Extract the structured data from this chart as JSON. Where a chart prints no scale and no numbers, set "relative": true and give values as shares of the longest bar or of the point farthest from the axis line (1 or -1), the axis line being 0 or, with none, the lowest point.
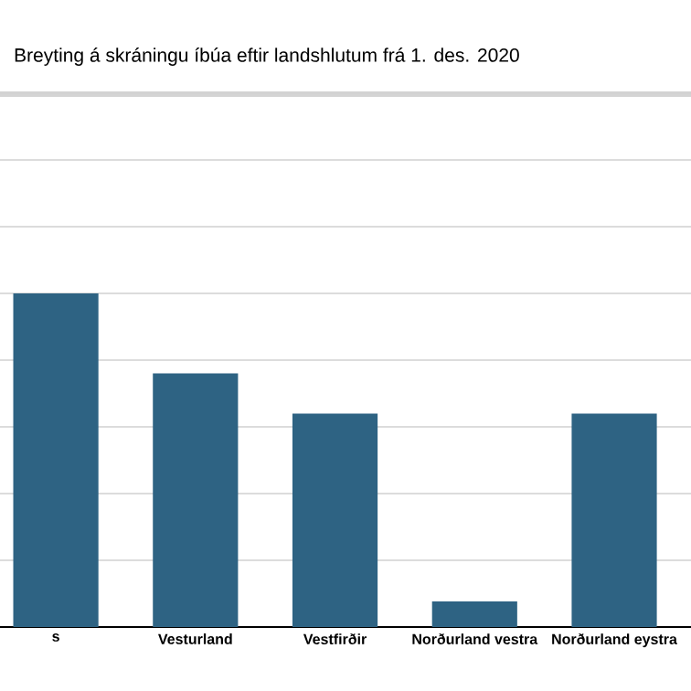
{
  "chart_data": {
    "type": "bar",
    "title": "Breyting á skráningu íbúa eftir landshlutum frá 1. des. 2020",
    "categories": [
      "s",
      "Vesturland",
      "Vestfirðir",
      "Norðurland vestra",
      "Norðurland eystra"
    ],
    "values": [
      1,
      0.76,
      0.64,
      0.077,
      0.64
    ],
    "color": "#2e6383",
    "relative": true,
    "grid": "y"
  }
}
